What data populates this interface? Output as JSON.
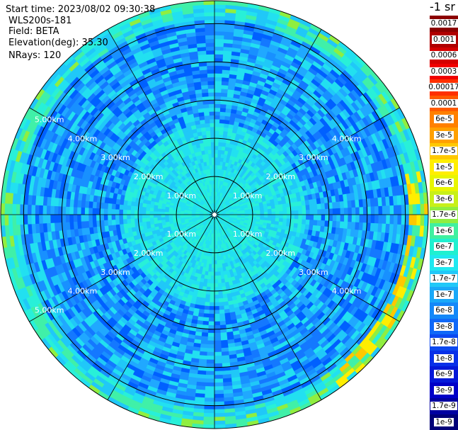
{
  "header": {
    "start_time": "Start time: 2023/08/02 09:30:38",
    "instrument": "WLS200s-181",
    "field": "Field: BETA",
    "elevation": "Elevation(deg): 35.30",
    "nrays": "NRays: 120"
  },
  "ppi": {
    "range_ring_labels": [
      "1.00km",
      "2.00km",
      "3.00km",
      "4.00km",
      "5.00km"
    ],
    "spoke_count": 12,
    "max_range_km": 5.6,
    "background_color": "#2fd0f0"
  },
  "colorbar": {
    "unit": "-1 sr",
    "levels": [
      {
        "label": "0.0017",
        "color": "#8b0000"
      },
      {
        "label": "0.001",
        "color": "#b00000"
      },
      {
        "label": "0.0006",
        "color": "#d40000"
      },
      {
        "label": "0.0003",
        "color": "#f00000"
      },
      {
        "label": "0.00017",
        "color": "#ff3000"
      },
      {
        "label": "0.0001",
        "color": "#ff5a00"
      },
      {
        "label": "6e-5",
        "color": "#ff8000"
      },
      {
        "label": "3e-5",
        "color": "#ffa000"
      },
      {
        "label": "1.7e-5",
        "color": "#ffc800"
      },
      {
        "label": "1e-5",
        "color": "#ffee00"
      },
      {
        "label": "6e-6",
        "color": "#e8f500"
      },
      {
        "label": "3e-6",
        "color": "#c8f018"
      },
      {
        "label": "1.7e-6",
        "color": "#90ee40"
      },
      {
        "label": "1e-6",
        "color": "#40f0a0"
      },
      {
        "label": "6e-7",
        "color": "#20f0d0"
      },
      {
        "label": "3e-7",
        "color": "#20e8f0"
      },
      {
        "label": "1.7e-7",
        "color": "#20c8f8"
      },
      {
        "label": "1e-7",
        "color": "#1aa8f8"
      },
      {
        "label": "6e-8",
        "color": "#1488f8"
      },
      {
        "label": "3e-8",
        "color": "#1068f8"
      },
      {
        "label": "1.7e-8",
        "color": "#0c48f0"
      },
      {
        "label": "1e-8",
        "color": "#0830e8"
      },
      {
        "label": "6e-9",
        "color": "#0418d8"
      },
      {
        "label": "3e-9",
        "color": "#0000c8"
      },
      {
        "label": "1.7e-9",
        "color": "#0000a0"
      },
      {
        "label": "1e-9",
        "color": "#000078"
      }
    ]
  }
}
